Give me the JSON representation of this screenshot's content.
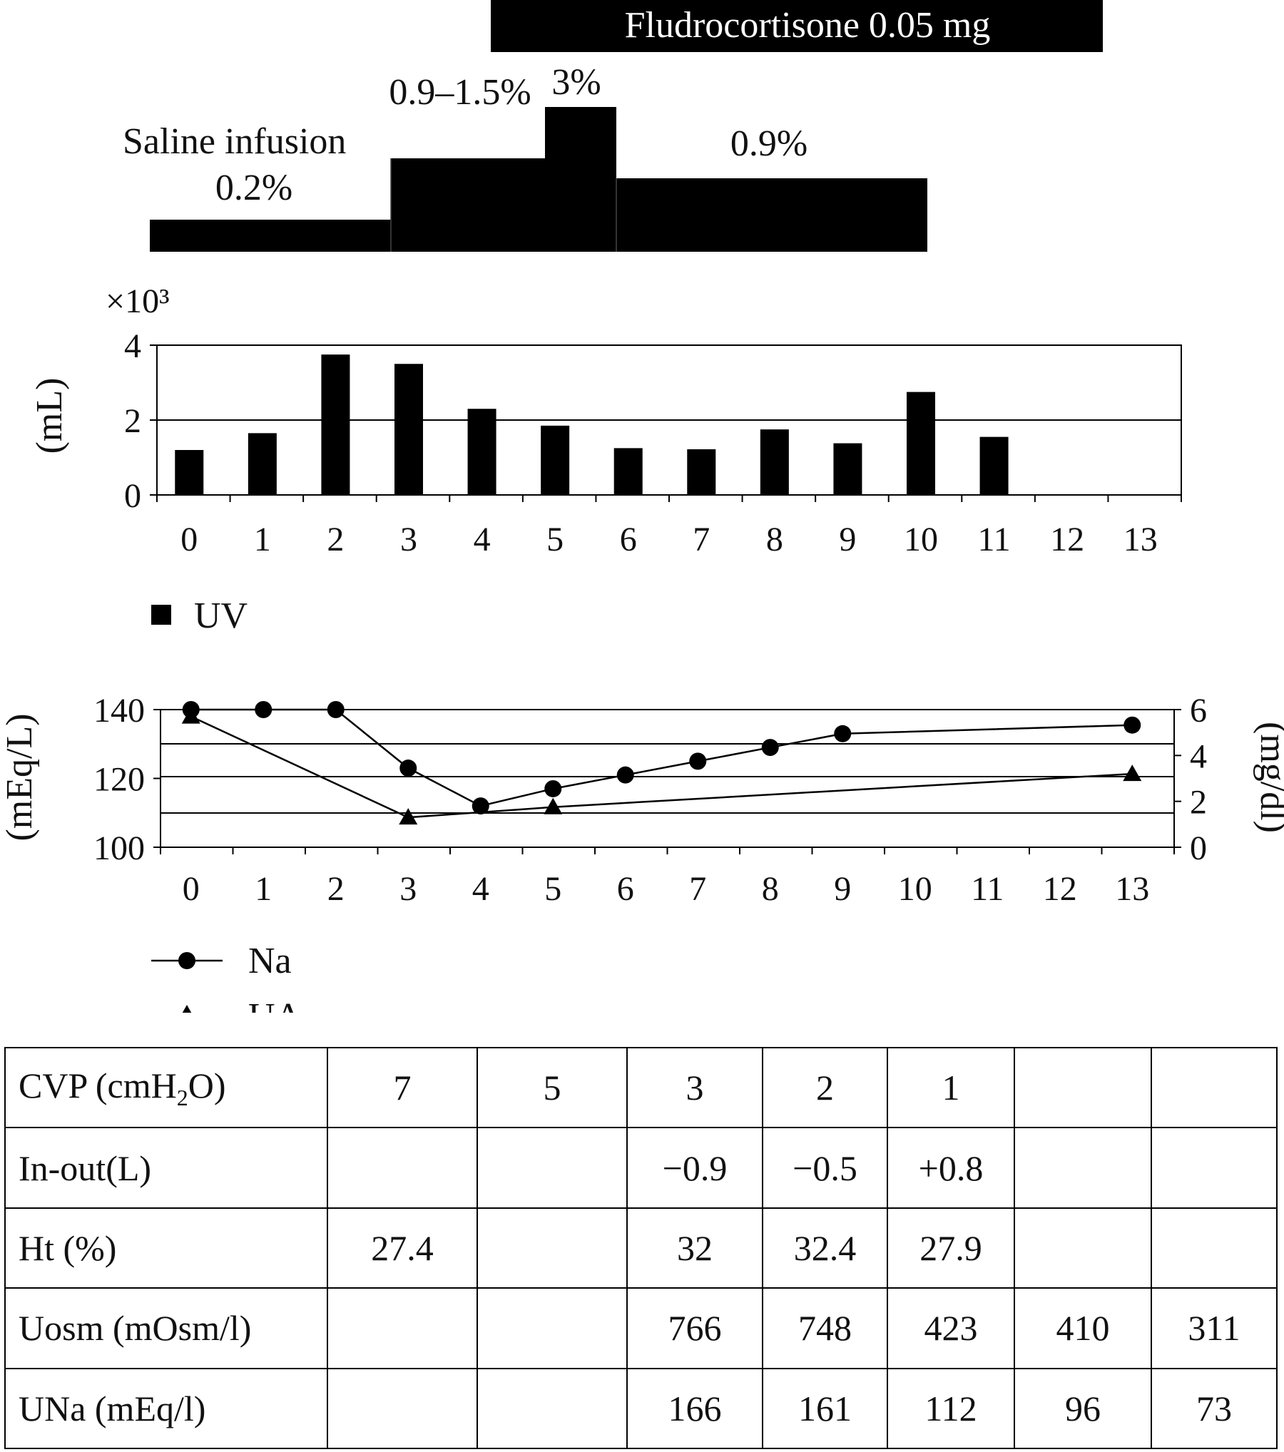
{
  "protocol": {
    "fludro_label": "Fludrocortisone 0.05 mg",
    "saline_title": "Saline infusion",
    "steps": [
      {
        "label": "0.2%"
      },
      {
        "label": "0.9–1.5%"
      },
      {
        "label": "3%"
      },
      {
        "label": "0.9%"
      }
    ]
  },
  "chart_data": [
    {
      "type": "bar",
      "y_multiplier": "×10³",
      "ylabel": "(mL)",
      "ylim": [
        0,
        4
      ],
      "yticks": [
        0,
        2,
        4
      ],
      "gridlines": [
        2
      ],
      "categories": [
        "0",
        "1",
        "2",
        "3",
        "4",
        "5",
        "6",
        "7",
        "8",
        "9",
        "10",
        "11",
        "12",
        "13"
      ],
      "series": [
        {
          "name": "UV",
          "values": [
            1.2,
            1.65,
            3.75,
            3.5,
            2.3,
            1.85,
            1.25,
            1.22,
            1.75,
            1.38,
            2.75,
            1.55,
            null,
            null
          ]
        }
      ],
      "legend": "bottom-left"
    },
    {
      "type": "line",
      "ylabel": "(mEq/L)",
      "ylabel_right": "(mg/dl)",
      "ylim": [
        100,
        140
      ],
      "ylim_right": [
        0,
        6
      ],
      "yticks": [
        100,
        120,
        140
      ],
      "yticks_right": [
        0,
        2,
        4,
        6
      ],
      "categories": [
        "0",
        "1",
        "2",
        "3",
        "4",
        "5",
        "6",
        "7",
        "8",
        "9",
        "10",
        "11",
        "12",
        "13"
      ],
      "series": [
        {
          "name": "Na",
          "axis": "left",
          "marker": "circle",
          "x": [
            0,
            1,
            2,
            3,
            4,
            5,
            6,
            7,
            8,
            9,
            13
          ],
          "y": [
            140,
            140,
            140,
            123,
            112,
            117,
            121,
            125,
            129,
            133,
            135.5
          ]
        },
        {
          "name": "UA",
          "axis": "right",
          "marker": "triangle",
          "x": [
            0,
            3,
            5,
            13
          ],
          "y": [
            5.7,
            1.3,
            1.75,
            3.2
          ]
        }
      ],
      "legend": "bottom-left"
    }
  ],
  "table": {
    "rows": [
      {
        "label_main": "CVP (cmH",
        "label_sub": "2",
        "label_end": "O)",
        "values": [
          "7",
          "5",
          "3",
          "2",
          "1",
          "",
          ""
        ]
      },
      {
        "label": "In-out(L)",
        "values": [
          "",
          "",
          "−0.9",
          "−0.5",
          "+0.8",
          "",
          ""
        ]
      },
      {
        "label": "Ht (%)",
        "values": [
          "27.4",
          "",
          "32",
          "32.4",
          "27.9",
          "",
          ""
        ]
      },
      {
        "label": "Uosm (mOsm/l)",
        "values": [
          "",
          "",
          "766",
          "748",
          "423",
          "410",
          "311"
        ]
      },
      {
        "label": "UNa (mEq/l)",
        "values": [
          "",
          "",
          "166",
          "161",
          "112",
          "96",
          "73"
        ]
      }
    ]
  }
}
